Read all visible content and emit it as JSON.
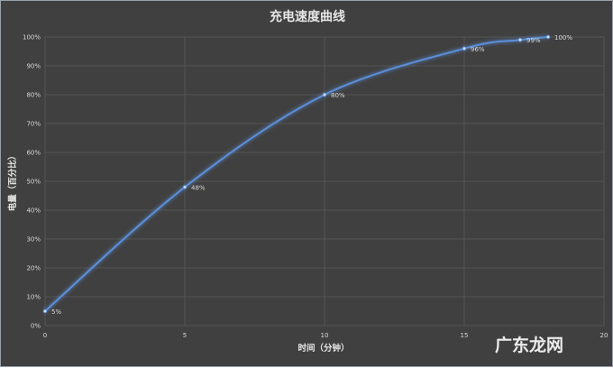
{
  "chart_data": {
    "type": "line",
    "title": "充电速度曲线",
    "xlabel": "时间（分钟）",
    "ylabel": "电量（百分比）",
    "xlim": [
      0,
      20
    ],
    "ylim": [
      0,
      100
    ],
    "x_ticks": [
      "0",
      "5",
      "10",
      "15",
      "20"
    ],
    "y_ticks": [
      "0%",
      "10%",
      "20%",
      "30%",
      "40%",
      "50%",
      "60%",
      "70%",
      "80%",
      "90%",
      "100%"
    ],
    "grid": true,
    "legend": "none",
    "series": [
      {
        "x": [
          0,
          5,
          10,
          15,
          17,
          18
        ],
        "y": [
          5,
          48,
          80,
          96,
          99,
          100
        ],
        "labels": [
          "5%",
          "48%",
          "80%",
          "96%",
          "99%",
          "100%"
        ],
        "color": "#5b8fd9"
      }
    ]
  },
  "watermark": "广东龙网",
  "colors": {
    "background": "#404040",
    "grid": "#5a5a5a",
    "line": "#5b8fd9",
    "text": "#d9d9d9"
  }
}
